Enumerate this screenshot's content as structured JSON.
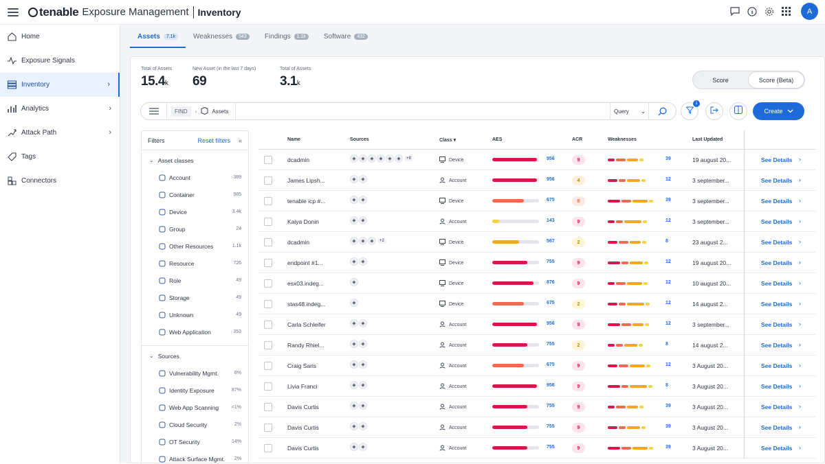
{
  "app": {
    "brand": "tenable",
    "product": "Exposure Management",
    "page": "Inventory",
    "avatar": "A"
  },
  "sidebar": [
    {
      "label": "Home",
      "icon": "home-icon",
      "active": false,
      "chev": false
    },
    {
      "label": "Exposure Signals",
      "icon": "signal-icon",
      "active": false,
      "chev": false
    },
    {
      "label": "Inventory",
      "icon": "inventory-icon",
      "active": true,
      "chev": true
    },
    {
      "label": "Analytics",
      "icon": "chart-icon",
      "active": false,
      "chev": true
    },
    {
      "label": "Attack Path",
      "icon": "path-icon",
      "active": false,
      "chev": true
    },
    {
      "label": "Tags",
      "icon": "tag-icon",
      "active": false,
      "chev": false
    },
    {
      "label": "Connectors",
      "icon": "connector-icon",
      "active": false,
      "chev": false
    }
  ],
  "tabs": [
    {
      "label": "Assets",
      "count": "7.1k",
      "active": true
    },
    {
      "label": "Weaknesses",
      "count": "543",
      "active": false
    },
    {
      "label": "Findings",
      "count": "1.1k",
      "active": false
    },
    {
      "label": "Software",
      "count": "432",
      "active": false
    }
  ],
  "stats": [
    {
      "label": "Total of Assets",
      "value": "15.4",
      "unit": "k"
    },
    {
      "label": "New Asset (in the last 7 days)",
      "value": "69",
      "unit": ""
    },
    {
      "label": "Total of Assets",
      "value": "3.1",
      "unit": "k"
    }
  ],
  "score_toggle": {
    "left": "Score",
    "right": "Score (Beta)"
  },
  "query": {
    "find": "FIND",
    "asset": "Assets",
    "mode": "Query"
  },
  "filter_badge": "1",
  "create_label": "Create",
  "filters": {
    "title": "Filters",
    "reset": "Reset filters",
    "asset_classes_title": "Asset classes",
    "asset_classes": [
      {
        "label": "Account",
        "count": "389"
      },
      {
        "label": "Container",
        "count": "985"
      },
      {
        "label": "Device",
        "count": "3.4k"
      },
      {
        "label": "Group",
        "count": "24"
      },
      {
        "label": "Other Resources",
        "count": "1.1k"
      },
      {
        "label": "Resource",
        "count": "726"
      },
      {
        "label": "Role",
        "count": "49"
      },
      {
        "label": "Storage",
        "count": "49"
      },
      {
        "label": "Unknown",
        "count": "49"
      },
      {
        "label": "Web Application",
        "count": "353"
      }
    ],
    "sources_title": "Sources",
    "sources": [
      {
        "label": "Vulnerability Mgmt.",
        "count": "8%"
      },
      {
        "label": "Identity Exposure",
        "count": "87%"
      },
      {
        "label": "Web App Scanning",
        "count": "<1%"
      },
      {
        "label": "Cloud Security",
        "count": "2%"
      },
      {
        "label": "OT Security",
        "count": "14%"
      },
      {
        "label": "Attack Surface Mgmt.",
        "count": "2%"
      }
    ]
  },
  "columns": [
    "Name",
    "Sources",
    "Class",
    "AES",
    "ACR",
    "Weaknesses",
    "Last Updated"
  ],
  "see_details": "See Details",
  "colors": {
    "accent": "#1d6ad8",
    "critical": "#d6174a",
    "high": "#ee6c4d",
    "medium": "#f5a623",
    "low": "#f5d33b"
  },
  "rows": [
    {
      "name": "dcadmin",
      "sources": 6,
      "more": "+8",
      "class": "Device",
      "aes": 956,
      "acr": "9",
      "wk": 39,
      "updated": "19 august 20..."
    },
    {
      "name": "James Lipsh...",
      "sources": 2,
      "more": "",
      "class": "Account",
      "aes": 956,
      "acr": "4",
      "wk": 12,
      "updated": "3 september..."
    },
    {
      "name": "tenable icp #...",
      "sources": 2,
      "more": "",
      "class": "Device",
      "aes": 675,
      "acr": "6",
      "wk": 39,
      "updated": "3 september..."
    },
    {
      "name": "Kaiya Donin",
      "sources": 2,
      "more": "",
      "class": "Account",
      "aes": 143,
      "acr": "9",
      "wk": 12,
      "updated": "3 september..."
    },
    {
      "name": "dcadmin",
      "sources": 3,
      "more": "+2",
      "class": "Device",
      "aes": 567,
      "acr": "2",
      "wk": 8,
      "updated": "23 august 2..."
    },
    {
      "name": "endpoint #1...",
      "sources": 2,
      "more": "",
      "class": "Device",
      "aes": 755,
      "acr": "9",
      "wk": 12,
      "updated": "19 august 20..."
    },
    {
      "name": "esx03.indeg...",
      "sources": 1,
      "more": "",
      "class": "Device",
      "aes": 876,
      "acr": "9",
      "wk": 12,
      "updated": "10 august 20..."
    },
    {
      "name": "stas48.indeg...",
      "sources": 1,
      "more": "",
      "class": "Device",
      "aes": 675,
      "acr": "2",
      "wk": 12,
      "updated": "14 august 2..."
    },
    {
      "name": "Carla Schleifer",
      "sources": 2,
      "more": "",
      "class": "Account",
      "aes": 956,
      "acr": "9",
      "wk": 12,
      "updated": "3 september..."
    },
    {
      "name": "Randy Rhiel...",
      "sources": 2,
      "more": "",
      "class": "Account",
      "aes": 755,
      "acr": "2",
      "wk": 8,
      "updated": "14 august 2..."
    },
    {
      "name": "Craig Saris",
      "sources": 2,
      "more": "",
      "class": "Account",
      "aes": 675,
      "acr": "9",
      "wk": 12,
      "updated": "3 August 20..."
    },
    {
      "name": "Livia Franci",
      "sources": 2,
      "more": "",
      "class": "Account",
      "aes": 956,
      "acr": "9",
      "wk": 8,
      "updated": "3 August 20..."
    },
    {
      "name": "Davis Curtis",
      "sources": 2,
      "more": "",
      "class": "Account",
      "aes": 755,
      "acr": "9",
      "wk": 39,
      "updated": "3 August 20..."
    },
    {
      "name": "Davis Curtis",
      "sources": 2,
      "more": "",
      "class": "Account",
      "aes": 755,
      "acr": "9",
      "wk": 39,
      "updated": "3 August 20..."
    },
    {
      "name": "Davis Curtis",
      "sources": 2,
      "more": "",
      "class": "Account",
      "aes": 755,
      "acr": "9",
      "wk": 39,
      "updated": "3 August 20..."
    }
  ]
}
